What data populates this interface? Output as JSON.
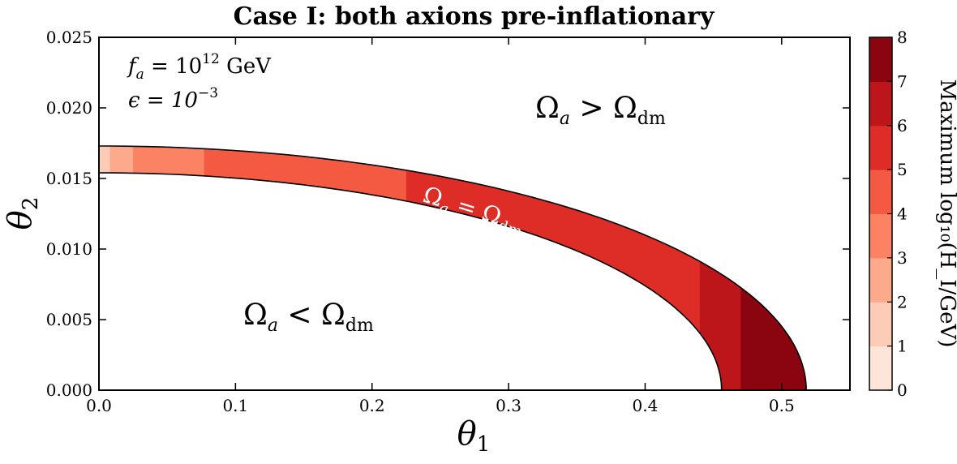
{
  "chart_data": {
    "type": "contour",
    "title": "Case I: both axions pre-inflationary",
    "xlabel": "θ",
    "xlabel_sub": "1",
    "ylabel": "θ",
    "ylabel_sub": "2",
    "xlim": [
      0,
      0.55
    ],
    "ylim": [
      0,
      0.025
    ],
    "xticks": [
      "0.0",
      "0.1",
      "0.2",
      "0.3",
      "0.4",
      "0.5"
    ],
    "xtick_values": [
      0,
      0.1,
      0.2,
      0.3,
      0.4,
      0.5
    ],
    "yticks": [
      "0.000",
      "0.005",
      "0.010",
      "0.015",
      "0.020",
      "0.025"
    ],
    "ytick_values": [
      0,
      0.005,
      0.01,
      0.015,
      0.02,
      0.025
    ],
    "band": {
      "inner_x_intercept": 0.456,
      "inner_y_intercept": 0.0154,
      "outer_x_intercept": 0.518,
      "outer_y_intercept": 0.0173,
      "level_segments": [
        {
          "level": 1,
          "theta1_from": 0.0,
          "theta1_to": 0.008
        },
        {
          "level": 2,
          "theta1_from": 0.008,
          "theta1_to": 0.025
        },
        {
          "level": 3,
          "theta1_from": 0.025,
          "theta1_to": 0.077
        },
        {
          "level": 4,
          "theta1_from": 0.077,
          "theta1_to": 0.225
        },
        {
          "level": 5,
          "theta1_from": 0.225,
          "theta1_to": 0.44
        },
        {
          "level": 6,
          "theta1_from": 0.44,
          "theta1_to": 0.47
        },
        {
          "level": 7,
          "theta1_from": 0.47,
          "theta1_to": 0.518
        }
      ]
    },
    "colorbar": {
      "label": "Maximum log₁₀(H_I/GeV)",
      "ticks": [
        "0",
        "1",
        "2",
        "3",
        "4",
        "5",
        "6",
        "7",
        "8"
      ],
      "range": [
        0,
        8
      ],
      "colors": [
        "#fee5d9",
        "#fcccb6",
        "#fca98c",
        "#fb8262",
        "#f45a42",
        "#de2d26",
        "#bc151a",
        "#8b0510"
      ]
    },
    "annotations": {
      "fa_lhs": "f",
      "fa_sub": "a",
      "fa_rhs": " = 10",
      "fa_exp": "12",
      "fa_unit": " GeV",
      "eps_lhs": "ϵ = 10",
      "eps_exp": "−3",
      "region_above": "Ω",
      "region_above_sub": "a",
      "region_above_rel": " > Ω",
      "region_above_sub2": "dm",
      "region_below": "Ω",
      "region_below_sub": "a",
      "region_below_rel": " < Ω",
      "region_below_sub2": "dm",
      "band_label": "Ω",
      "band_label_sub": "a",
      "band_label_rel": " = Ω",
      "band_label_sub2": "dm"
    }
  }
}
